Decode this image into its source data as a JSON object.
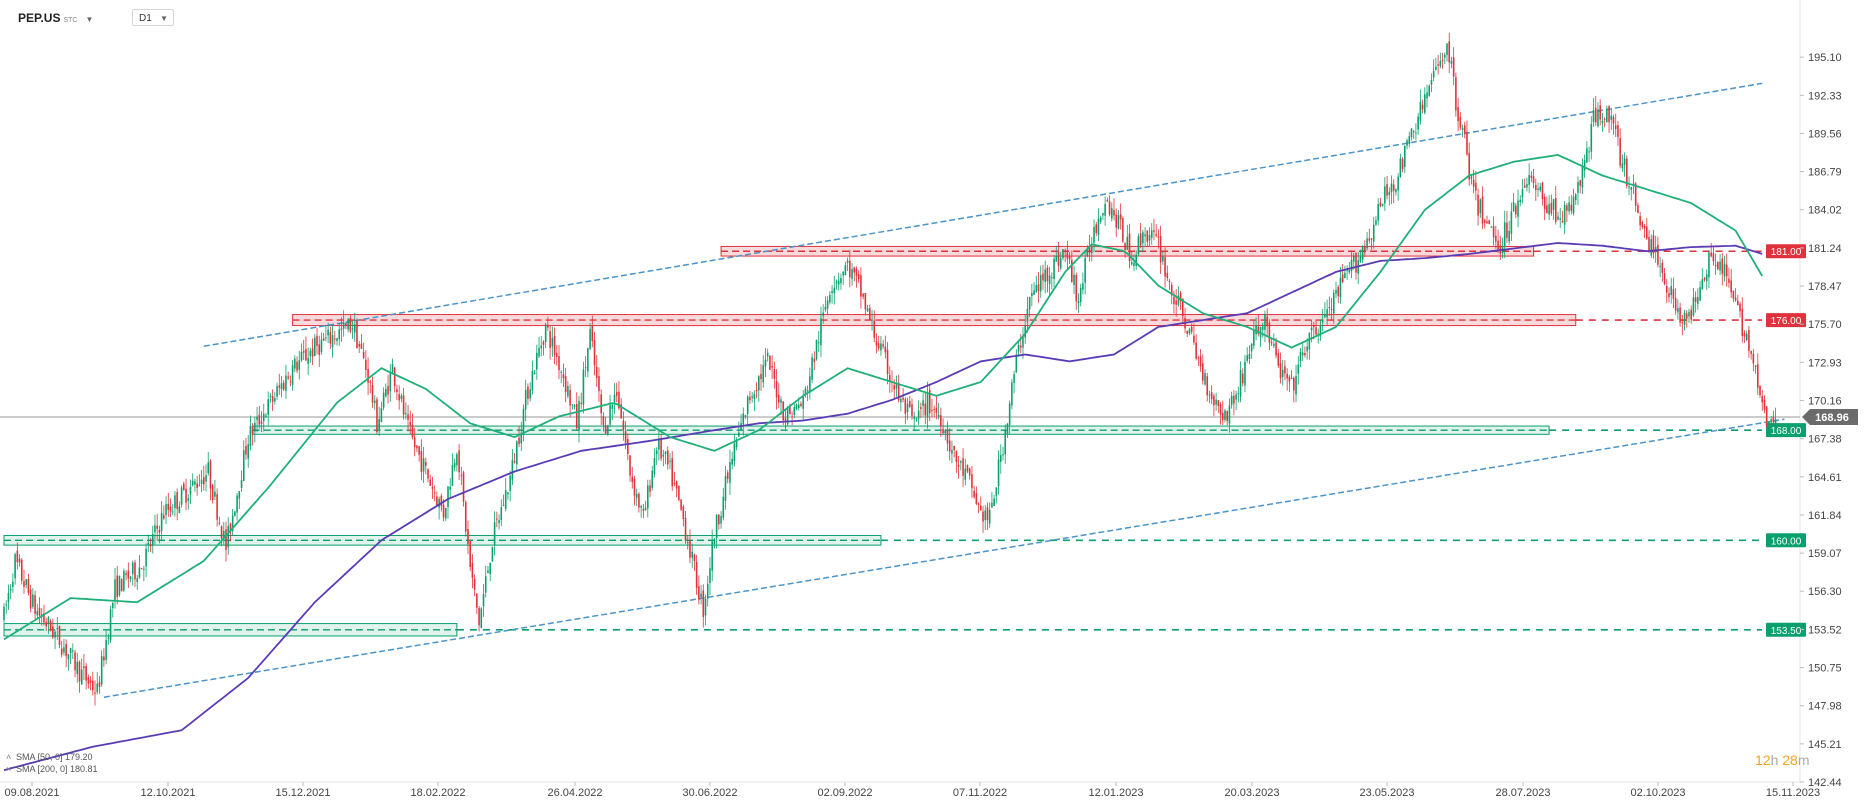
{
  "header": {
    "symbol": "PEP.US",
    "symbol_suffix": "STC",
    "timeframe": "D1"
  },
  "legend": [
    {
      "label": "SMA [50, 0] 179.20",
      "color": "#1fb07a"
    },
    {
      "label": "SMA [200, 0] 180.81",
      "color": "#5b3bb5"
    }
  ],
  "timer": {
    "hours": "12",
    "h_unit": "h",
    "minutes": "28",
    "m_unit": "m"
  },
  "colors": {
    "up": "#0aa06e",
    "down": "#e0323c",
    "sma50": "#1fb07a",
    "sma200": "#5b3bb5",
    "trend": "#4a94c9",
    "resist": "#e0323c",
    "support": "#0aa06e"
  },
  "chart_data": {
    "type": "candlestick",
    "symbol": "PEP.US",
    "timeframe": "D1",
    "ylim": [
      142.44,
      197.8
    ],
    "y_ticks": [
      "195.10",
      "192.33",
      "189.56",
      "186.79",
      "184.02",
      "181.24",
      "178.47",
      "175.70",
      "172.93",
      "170.16",
      "167.38",
      "164.61",
      "161.84",
      "159.07",
      "156.30",
      "153.52",
      "150.75",
      "147.98",
      "145.21",
      "142.44"
    ],
    "x_ticks": [
      "09.08.2021",
      "12.10.2021",
      "15.12.2021",
      "18.02.2022",
      "26.04.2022",
      "30.06.2022",
      "02.09.2022",
      "07.11.2022",
      "12.01.2023",
      "20.03.2023",
      "23.05.2023",
      "28.07.2023",
      "02.10.2023",
      "15.11.2023"
    ],
    "last_price": "168.96",
    "anchors": [
      [
        0,
        154.5
      ],
      [
        5,
        158.5
      ],
      [
        14,
        155.0
      ],
      [
        24,
        153.0
      ],
      [
        34,
        150.5
      ],
      [
        42,
        149.0
      ],
      [
        50,
        156.5
      ],
      [
        62,
        158.2
      ],
      [
        72,
        162.0
      ],
      [
        82,
        163.5
      ],
      [
        92,
        165.0
      ],
      [
        100,
        159.5
      ],
      [
        110,
        167.5
      ],
      [
        120,
        170.0
      ],
      [
        130,
        172.5
      ],
      [
        140,
        174.0
      ],
      [
        150,
        175.0
      ],
      [
        157,
        175.7
      ],
      [
        164,
        172.0
      ],
      [
        168,
        168.5
      ],
      [
        175,
        172.5
      ],
      [
        182,
        168.0
      ],
      [
        190,
        165.0
      ],
      [
        198,
        162.0
      ],
      [
        204,
        167.0
      ],
      [
        210,
        158.0
      ],
      [
        214,
        154.0
      ],
      [
        220,
        160.0
      ],
      [
        228,
        164.5
      ],
      [
        236,
        171.0
      ],
      [
        244,
        175.5
      ],
      [
        252,
        172.0
      ],
      [
        258,
        168.5
      ],
      [
        264,
        175.0
      ],
      [
        270,
        168.0
      ],
      [
        276,
        171.0
      ],
      [
        282,
        165.0
      ],
      [
        288,
        161.5
      ],
      [
        294,
        167.0
      ],
      [
        300,
        165.0
      ],
      [
        306,
        161.5
      ],
      [
        312,
        157.0
      ],
      [
        315,
        155.0
      ],
      [
        320,
        160.5
      ],
      [
        328,
        166.0
      ],
      [
        336,
        170.5
      ],
      [
        344,
        173.0
      ],
      [
        352,
        169.0
      ],
      [
        360,
        170.0
      ],
      [
        368,
        175.5
      ],
      [
        372,
        178.5
      ],
      [
        380,
        180.0
      ],
      [
        386,
        178.0
      ],
      [
        392,
        175.0
      ],
      [
        398,
        172.5
      ],
      [
        404,
        170.0
      ],
      [
        410,
        168.5
      ],
      [
        416,
        170.0
      ],
      [
        422,
        169.0
      ],
      [
        428,
        166.0
      ],
      [
        434,
        164.5
      ],
      [
        440,
        162.0
      ],
      [
        444,
        161.5
      ],
      [
        450,
        167.0
      ],
      [
        456,
        173.0
      ],
      [
        462,
        177.5
      ],
      [
        470,
        179.5
      ],
      [
        478,
        181.0
      ],
      [
        484,
        177.5
      ],
      [
        490,
        182.0
      ],
      [
        496,
        185.0
      ],
      [
        502,
        183.0
      ],
      [
        508,
        180.5
      ],
      [
        514,
        182.5
      ],
      [
        520,
        181.5
      ],
      [
        526,
        178.0
      ],
      [
        532,
        176.0
      ],
      [
        538,
        173.0
      ],
      [
        544,
        170.5
      ],
      [
        550,
        169.0
      ],
      [
        556,
        171.0
      ],
      [
        562,
        174.5
      ],
      [
        568,
        176.0
      ],
      [
        574,
        172.5
      ],
      [
        580,
        171.0
      ],
      [
        586,
        174.0
      ],
      [
        592,
        175.5
      ],
      [
        598,
        177.0
      ],
      [
        604,
        179.0
      ],
      [
        610,
        180.5
      ],
      [
        616,
        182.5
      ],
      [
        622,
        185.0
      ],
      [
        628,
        186.5
      ],
      [
        634,
        189.5
      ],
      [
        640,
        192.0
      ],
      [
        646,
        194.5
      ],
      [
        650,
        196.2
      ],
      [
        654,
        192.0
      ],
      [
        658,
        189.0
      ],
      [
        662,
        185.0
      ],
      [
        668,
        183.0
      ],
      [
        674,
        181.5
      ],
      [
        680,
        184.0
      ],
      [
        686,
        186.5
      ],
      [
        692,
        185.0
      ],
      [
        698,
        184.0
      ],
      [
        704,
        183.5
      ],
      [
        710,
        186.0
      ],
      [
        716,
        190.5
      ],
      [
        722,
        191.5
      ],
      [
        728,
        188.0
      ],
      [
        734,
        185.0
      ],
      [
        740,
        182.0
      ],
      [
        746,
        180.0
      ],
      [
        752,
        177.5
      ],
      [
        758,
        175.5
      ],
      [
        764,
        179.0
      ],
      [
        770,
        181.0
      ],
      [
        776,
        179.0
      ],
      [
        782,
        176.0
      ],
      [
        786,
        174.5
      ],
      [
        790,
        171.0
      ],
      [
        794,
        168.5
      ],
      [
        798,
        168.5
      ]
    ],
    "sma50_anchors": [
      [
        0,
        152.8
      ],
      [
        30,
        155.8
      ],
      [
        60,
        155.5
      ],
      [
        90,
        158.5
      ],
      [
        120,
        164.0
      ],
      [
        150,
        170.0
      ],
      [
        170,
        172.5
      ],
      [
        190,
        171.0
      ],
      [
        210,
        168.5
      ],
      [
        230,
        167.5
      ],
      [
        250,
        169.0
      ],
      [
        275,
        170.0
      ],
      [
        300,
        167.5
      ],
      [
        320,
        166.5
      ],
      [
        340,
        168.0
      ],
      [
        360,
        170.5
      ],
      [
        380,
        172.5
      ],
      [
        400,
        171.5
      ],
      [
        420,
        170.5
      ],
      [
        440,
        171.5
      ],
      [
        460,
        175.0
      ],
      [
        478,
        179.5
      ],
      [
        490,
        181.5
      ],
      [
        505,
        181.0
      ],
      [
        520,
        178.5
      ],
      [
        540,
        176.5
      ],
      [
        560,
        175.5
      ],
      [
        580,
        174.0
      ],
      [
        600,
        175.5
      ],
      [
        620,
        179.5
      ],
      [
        640,
        184.0
      ],
      [
        660,
        186.5
      ],
      [
        680,
        187.5
      ],
      [
        700,
        188.0
      ],
      [
        720,
        186.5
      ],
      [
        740,
        185.5
      ],
      [
        760,
        184.5
      ],
      [
        780,
        182.5
      ],
      [
        792,
        179.2
      ]
    ],
    "sma200_anchors": [
      [
        0,
        143.3
      ],
      [
        40,
        145.0
      ],
      [
        80,
        146.2
      ],
      [
        110,
        150.0
      ],
      [
        140,
        155.5
      ],
      [
        170,
        160.0
      ],
      [
        200,
        163.0
      ],
      [
        230,
        165.0
      ],
      [
        260,
        166.5
      ],
      [
        290,
        167.2
      ],
      [
        320,
        168.0
      ],
      [
        340,
        168.5
      ],
      [
        360,
        168.7
      ],
      [
        380,
        169.2
      ],
      [
        400,
        170.2
      ],
      [
        420,
        171.5
      ],
      [
        440,
        173.0
      ],
      [
        460,
        173.5
      ],
      [
        480,
        173.0
      ],
      [
        500,
        173.5
      ],
      [
        520,
        175.5
      ],
      [
        540,
        176.0
      ],
      [
        560,
        176.5
      ],
      [
        580,
        178.0
      ],
      [
        600,
        179.5
      ],
      [
        620,
        180.3
      ],
      [
        640,
        180.5
      ],
      [
        660,
        180.8
      ],
      [
        680,
        181.2
      ],
      [
        700,
        181.6
      ],
      [
        720,
        181.4
      ],
      [
        740,
        181.0
      ],
      [
        760,
        181.3
      ],
      [
        780,
        181.4
      ],
      [
        792,
        180.81
      ]
    ],
    "trend_upper": [
      [
        90,
        174.1
      ],
      [
        792,
        193.2
      ]
    ],
    "trend_lower": [
      [
        45,
        148.6
      ],
      [
        802,
        168.8
      ]
    ],
    "levels": [
      {
        "value": 181.0,
        "label": "181.00",
        "type": "resistance",
        "zone_from": 323,
        "zone_to": 689,
        "zone_half": 0.35
      },
      {
        "value": 176.0,
        "label": "176.00",
        "type": "resistance",
        "zone_from": 130,
        "zone_to": 708,
        "zone_half": 0.4
      },
      {
        "value": 168.0,
        "label": "168.00",
        "type": "support",
        "zone_from": 112,
        "zone_to": 696,
        "zone_half": 0.3
      },
      {
        "value": 160.0,
        "label": "160.00",
        "type": "support",
        "zone_from": 0,
        "zone_to": 395,
        "zone_half": 0.35
      },
      {
        "value": 153.5,
        "label": "153.50",
        "type": "support",
        "zone_from": 0,
        "zone_to": 204,
        "zone_half": 0.45
      }
    ]
  }
}
